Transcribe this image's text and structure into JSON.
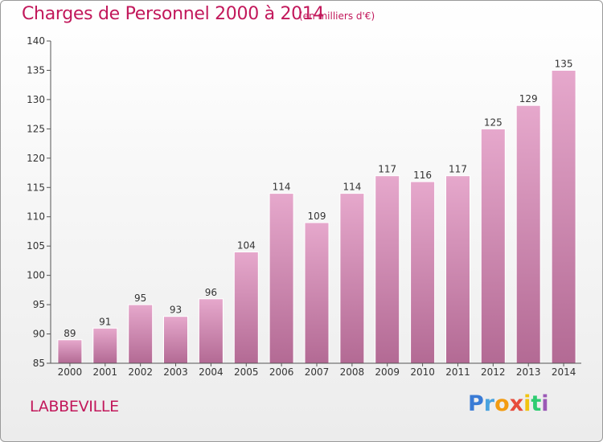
{
  "title": "Charges de Personnel 2000 à 2014",
  "subtitle": "(en milliers d'€)",
  "commune": "LABBEVILLE",
  "logo": {
    "letters": [
      "P",
      "r",
      "o",
      "x",
      "i",
      "t",
      "i"
    ],
    "colors": [
      "#3a7bd5",
      "#4aa3df",
      "#f39c12",
      "#e74c3c",
      "#f1c40f",
      "#2ecc71",
      "#9b59b6"
    ]
  },
  "colors": {
    "accent": "#c2185b",
    "bar_top": "#e6a8cc",
    "bar_bottom": "#b36a94",
    "bar_edge": "#ffffff",
    "axis": "#555555"
  },
  "chart_data": {
    "type": "bar",
    "title": "Charges de Personnel 2000 à 2014",
    "subtitle": "(en milliers d'€)",
    "xlabel": "",
    "ylabel": "",
    "categories": [
      "2000",
      "2001",
      "2002",
      "2003",
      "2004",
      "2005",
      "2006",
      "2007",
      "2008",
      "2009",
      "2010",
      "2011",
      "2012",
      "2013",
      "2014"
    ],
    "values": [
      89,
      91,
      95,
      93,
      96,
      104,
      114,
      109,
      114,
      117,
      116,
      117,
      125,
      129,
      135
    ],
    "ylim": [
      85,
      140
    ],
    "yticks": [
      85,
      90,
      95,
      100,
      105,
      110,
      115,
      120,
      125,
      130,
      135,
      140
    ],
    "grid": false,
    "data_labels": true,
    "legend": "none"
  }
}
